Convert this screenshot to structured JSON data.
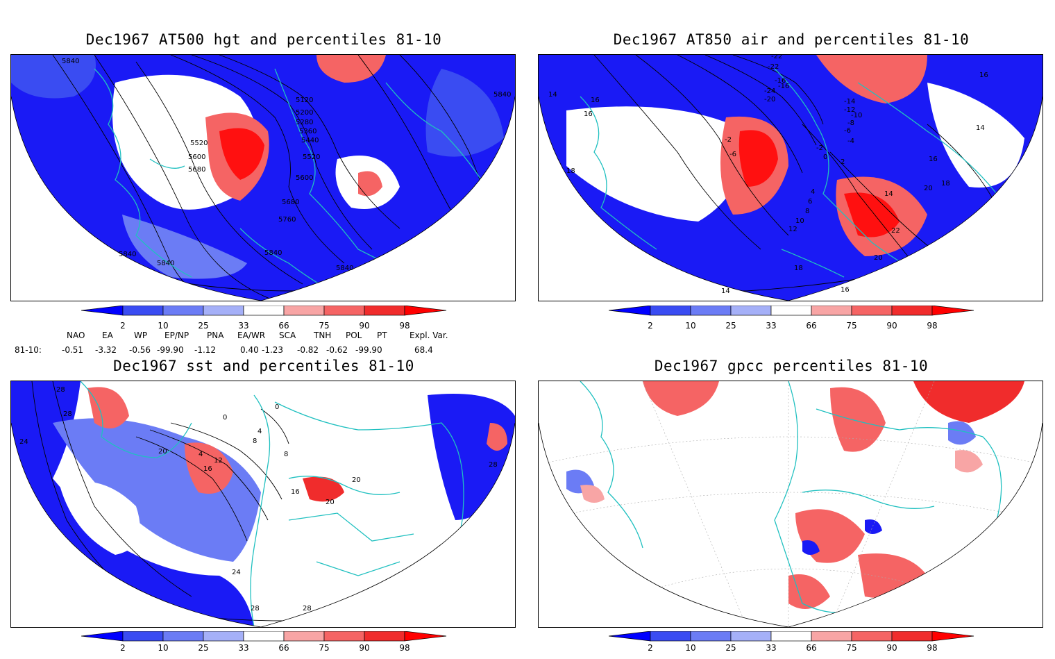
{
  "panels": [
    {
      "title": "Dec1967 AT500 hgt and percentiles 81-10",
      "contour_labels": [
        "5840",
        "5840",
        "5120",
        "5200",
        "5280",
        "5360",
        "5440",
        "5520",
        "5600",
        "5680",
        "5520",
        "5600",
        "5680",
        "5760",
        "5840",
        "5840",
        "5840",
        "5840"
      ]
    },
    {
      "title": "Dec1967 AT850 air and percentiles 81-10",
      "contour_labels": [
        "-22",
        "-22",
        "-16",
        "-16",
        "-24",
        "-20",
        "-14",
        "-12",
        "-10",
        "-8",
        "-6",
        "-4",
        "-2",
        "0",
        "2",
        "-2",
        "-6",
        "16",
        "16",
        "14",
        "16",
        "14",
        "18",
        "16",
        "18",
        "20",
        "14",
        "4",
        "6",
        "8",
        "10",
        "12",
        "22",
        "20",
        "18",
        "14",
        "16"
      ]
    },
    {
      "title": "Dec1967 sst and percentiles 81-10",
      "contour_labels": [
        "28",
        "28",
        "24",
        "0",
        "0",
        "4",
        "8",
        "20",
        "4",
        "12",
        "16",
        "8",
        "16",
        "20",
        "20",
        "24",
        "28",
        "28",
        "28"
      ]
    },
    {
      "title": "Dec1967 gpcc percentiles 81-10",
      "contour_labels": []
    }
  ],
  "colorbar": {
    "ticks": [
      "2",
      "10",
      "25",
      "33",
      "66",
      "75",
      "90",
      "98"
    ],
    "colors": [
      "#0000ff",
      "#3a4cf2",
      "#6b7cf5",
      "#a5b0f8",
      "#ffffff",
      "#f8a5a5",
      "#f56464",
      "#f02c2c",
      "#ff0000"
    ]
  },
  "indices": {
    "header": [
      "NAO",
      "EA",
      "WP",
      "EP/NP",
      "PNA",
      "EA/WR",
      "SCA",
      "TNH",
      "POL",
      "PT",
      "Expl. Var."
    ],
    "row_label": "81-10:",
    "values": [
      "-0.51",
      "-3.32",
      "-0.56",
      "-99.90",
      "-1.12",
      "0.40",
      "-1.23",
      "-0.82",
      "-0.62",
      "-99.90",
      "68.4"
    ]
  }
}
